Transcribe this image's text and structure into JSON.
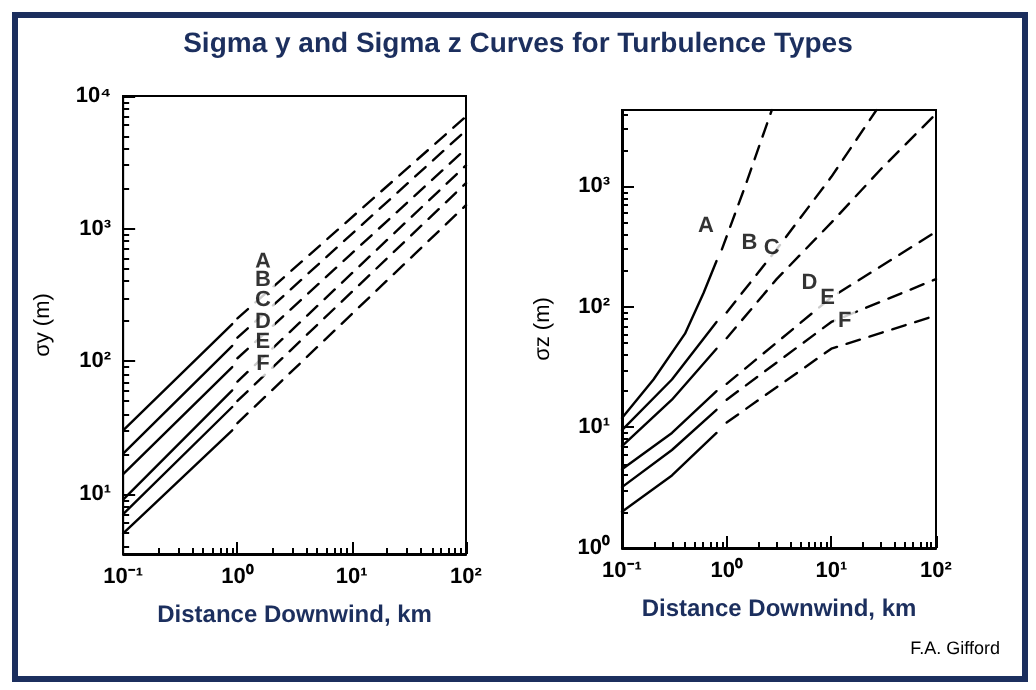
{
  "chart_data": [
    {
      "type": "line",
      "title": "Sigma y and Sigma z Curves for Turbulence Types",
      "xlabel": "Distance Downwind, km",
      "ylabel": "σy (m)",
      "log": "xy",
      "marker": "none",
      "xlim": [
        0.1,
        100
      ],
      "ylim": [
        3.5,
        10000
      ],
      "xticks": [
        {
          "value": 0.1,
          "label": "10⁻¹"
        },
        {
          "value": 1,
          "label": "10⁰"
        },
        {
          "value": 10,
          "label": "10¹"
        },
        {
          "value": 100,
          "label": "10²"
        }
      ],
      "yticks": [
        {
          "value": 10,
          "label": "10¹"
        },
        {
          "value": 100,
          "label": "10²"
        },
        {
          "value": 1000,
          "label": "10³"
        },
        {
          "value": 10000,
          "label": "10⁴"
        }
      ],
      "series": [
        {
          "color": "#000000",
          "line_style": "solid",
          "x": [
            0.1,
            0.9
          ],
          "values": [
            30,
            190
          ]
        },
        {
          "color": "#000000",
          "line_style": "solid",
          "x": [
            0.1,
            0.9
          ],
          "values": [
            20,
            130
          ]
        },
        {
          "color": "#000000",
          "line_style": "solid",
          "x": [
            0.1,
            0.9
          ],
          "values": [
            14,
            90
          ]
        },
        {
          "color": "#000000",
          "line_style": "solid",
          "x": [
            0.1,
            0.9
          ],
          "values": [
            9,
            60
          ]
        },
        {
          "color": "#000000",
          "line_style": "solid",
          "x": [
            0.1,
            0.9
          ],
          "values": [
            7,
            45
          ]
        },
        {
          "color": "#000000",
          "line_style": "solid",
          "x": [
            0.1,
            0.9
          ],
          "values": [
            5,
            30
          ]
        },
        {
          "color": "#000000",
          "line_style": "dashed",
          "x": [
            1,
            100
          ],
          "values": [
            210,
            7000
          ]
        },
        {
          "color": "#000000",
          "line_style": "dashed",
          "x": [
            1,
            100
          ],
          "values": [
            150,
            5500
          ]
        },
        {
          "color": "#000000",
          "line_style": "dashed",
          "x": [
            1,
            100
          ],
          "values": [
            105,
            4000
          ]
        },
        {
          "color": "#000000",
          "line_style": "dashed",
          "x": [
            1,
            100
          ],
          "values": [
            70,
            3000
          ]
        },
        {
          "color": "#000000",
          "line_style": "dashed",
          "x": [
            1,
            100
          ],
          "values": [
            50,
            2200
          ]
        },
        {
          "color": "#000000",
          "line_style": "dashed",
          "x": [
            1,
            100
          ],
          "values": [
            34,
            1500
          ]
        }
      ],
      "annotations": [
        {
          "text": "A",
          "x": 2.4,
          "y": 410
        },
        {
          "text": "B",
          "x": 2.4,
          "y": 297
        },
        {
          "text": "C",
          "x": 2.4,
          "y": 210
        },
        {
          "text": "D",
          "x": 2.4,
          "y": 143
        },
        {
          "text": "E",
          "x": 2.4,
          "y": 102
        },
        {
          "text": "F",
          "x": 2.4,
          "y": 70
        }
      ]
    },
    {
      "type": "line",
      "xlabel": "Distance Downwind, km",
      "ylabel": "σz (m)",
      "log": "xy",
      "marker": "none",
      "xlim": [
        0.1,
        100
      ],
      "ylim": [
        1,
        4300
      ],
      "xticks": [
        {
          "value": 0.1,
          "label": "10⁻¹"
        },
        {
          "value": 1,
          "label": "10⁰"
        },
        {
          "value": 10,
          "label": "10¹"
        },
        {
          "value": 100,
          "label": "10²"
        }
      ],
      "yticks": [
        {
          "value": 1,
          "label": "10⁰"
        },
        {
          "value": 10,
          "label": "10¹"
        },
        {
          "value": 100,
          "label": "10²"
        },
        {
          "value": 1000,
          "label": "10³"
        }
      ],
      "series": [
        {
          "color": "#000000",
          "line_style": "solid",
          "x": [
            0.1,
            0.2,
            0.4,
            0.6,
            0.8
          ],
          "values": [
            12,
            25,
            60,
            130,
            240
          ]
        },
        {
          "color": "#000000",
          "line_style": "solid",
          "x": [
            0.1,
            0.3,
            0.8
          ],
          "values": [
            9.5,
            25,
            75
          ]
        },
        {
          "color": "#000000",
          "line_style": "solid",
          "x": [
            0.1,
            0.3,
            0.8
          ],
          "values": [
            7,
            17,
            45
          ]
        },
        {
          "color": "#000000",
          "line_style": "solid",
          "x": [
            0.1,
            0.3,
            0.8
          ],
          "values": [
            4.5,
            9,
            20
          ]
        },
        {
          "color": "#000000",
          "line_style": "solid",
          "x": [
            0.1,
            0.3,
            0.8
          ],
          "values": [
            3.2,
            6.5,
            14
          ]
        },
        {
          "color": "#000000",
          "line_style": "solid",
          "x": [
            0.1,
            0.3,
            0.8
          ],
          "values": [
            2,
            4,
            9
          ]
        },
        {
          "color": "#000000",
          "line_style": "dashed",
          "x": [
            0.9,
            1.5,
            2.7
          ],
          "values": [
            300,
            1000,
            4300
          ]
        },
        {
          "color": "#000000",
          "line_style": "dashed",
          "x": [
            1,
            3,
            10,
            27
          ],
          "values": [
            90,
            300,
            1200,
            4300
          ]
        },
        {
          "color": "#000000",
          "line_style": "dashed",
          "x": [
            1,
            3,
            10,
            30,
            100
          ],
          "values": [
            55,
            170,
            500,
            1400,
            4000
          ]
        },
        {
          "color": "#000000",
          "line_style": "dashed",
          "x": [
            1,
            10,
            100
          ],
          "values": [
            23,
            120,
            420
          ]
        },
        {
          "color": "#000000",
          "line_style": "dashed",
          "x": [
            1,
            10,
            100
          ],
          "values": [
            17,
            75,
            170
          ]
        },
        {
          "color": "#000000",
          "line_style": "dashed",
          "x": [
            1,
            10,
            100
          ],
          "values": [
            11,
            45,
            85
          ]
        }
      ],
      "annotations": [
        {
          "text": "A",
          "x": 0.94,
          "y": 331
        },
        {
          "text": "B",
          "x": 2.45,
          "y": 240
        },
        {
          "text": "C",
          "x": 4,
          "y": 219
        },
        {
          "text": "D",
          "x": 9.2,
          "y": 113
        },
        {
          "text": "E",
          "x": 13.7,
          "y": 84
        },
        {
          "text": "F",
          "x": 19.9,
          "y": 54
        },
        "F.A. Gifford"
      ]
    }
  ]
}
